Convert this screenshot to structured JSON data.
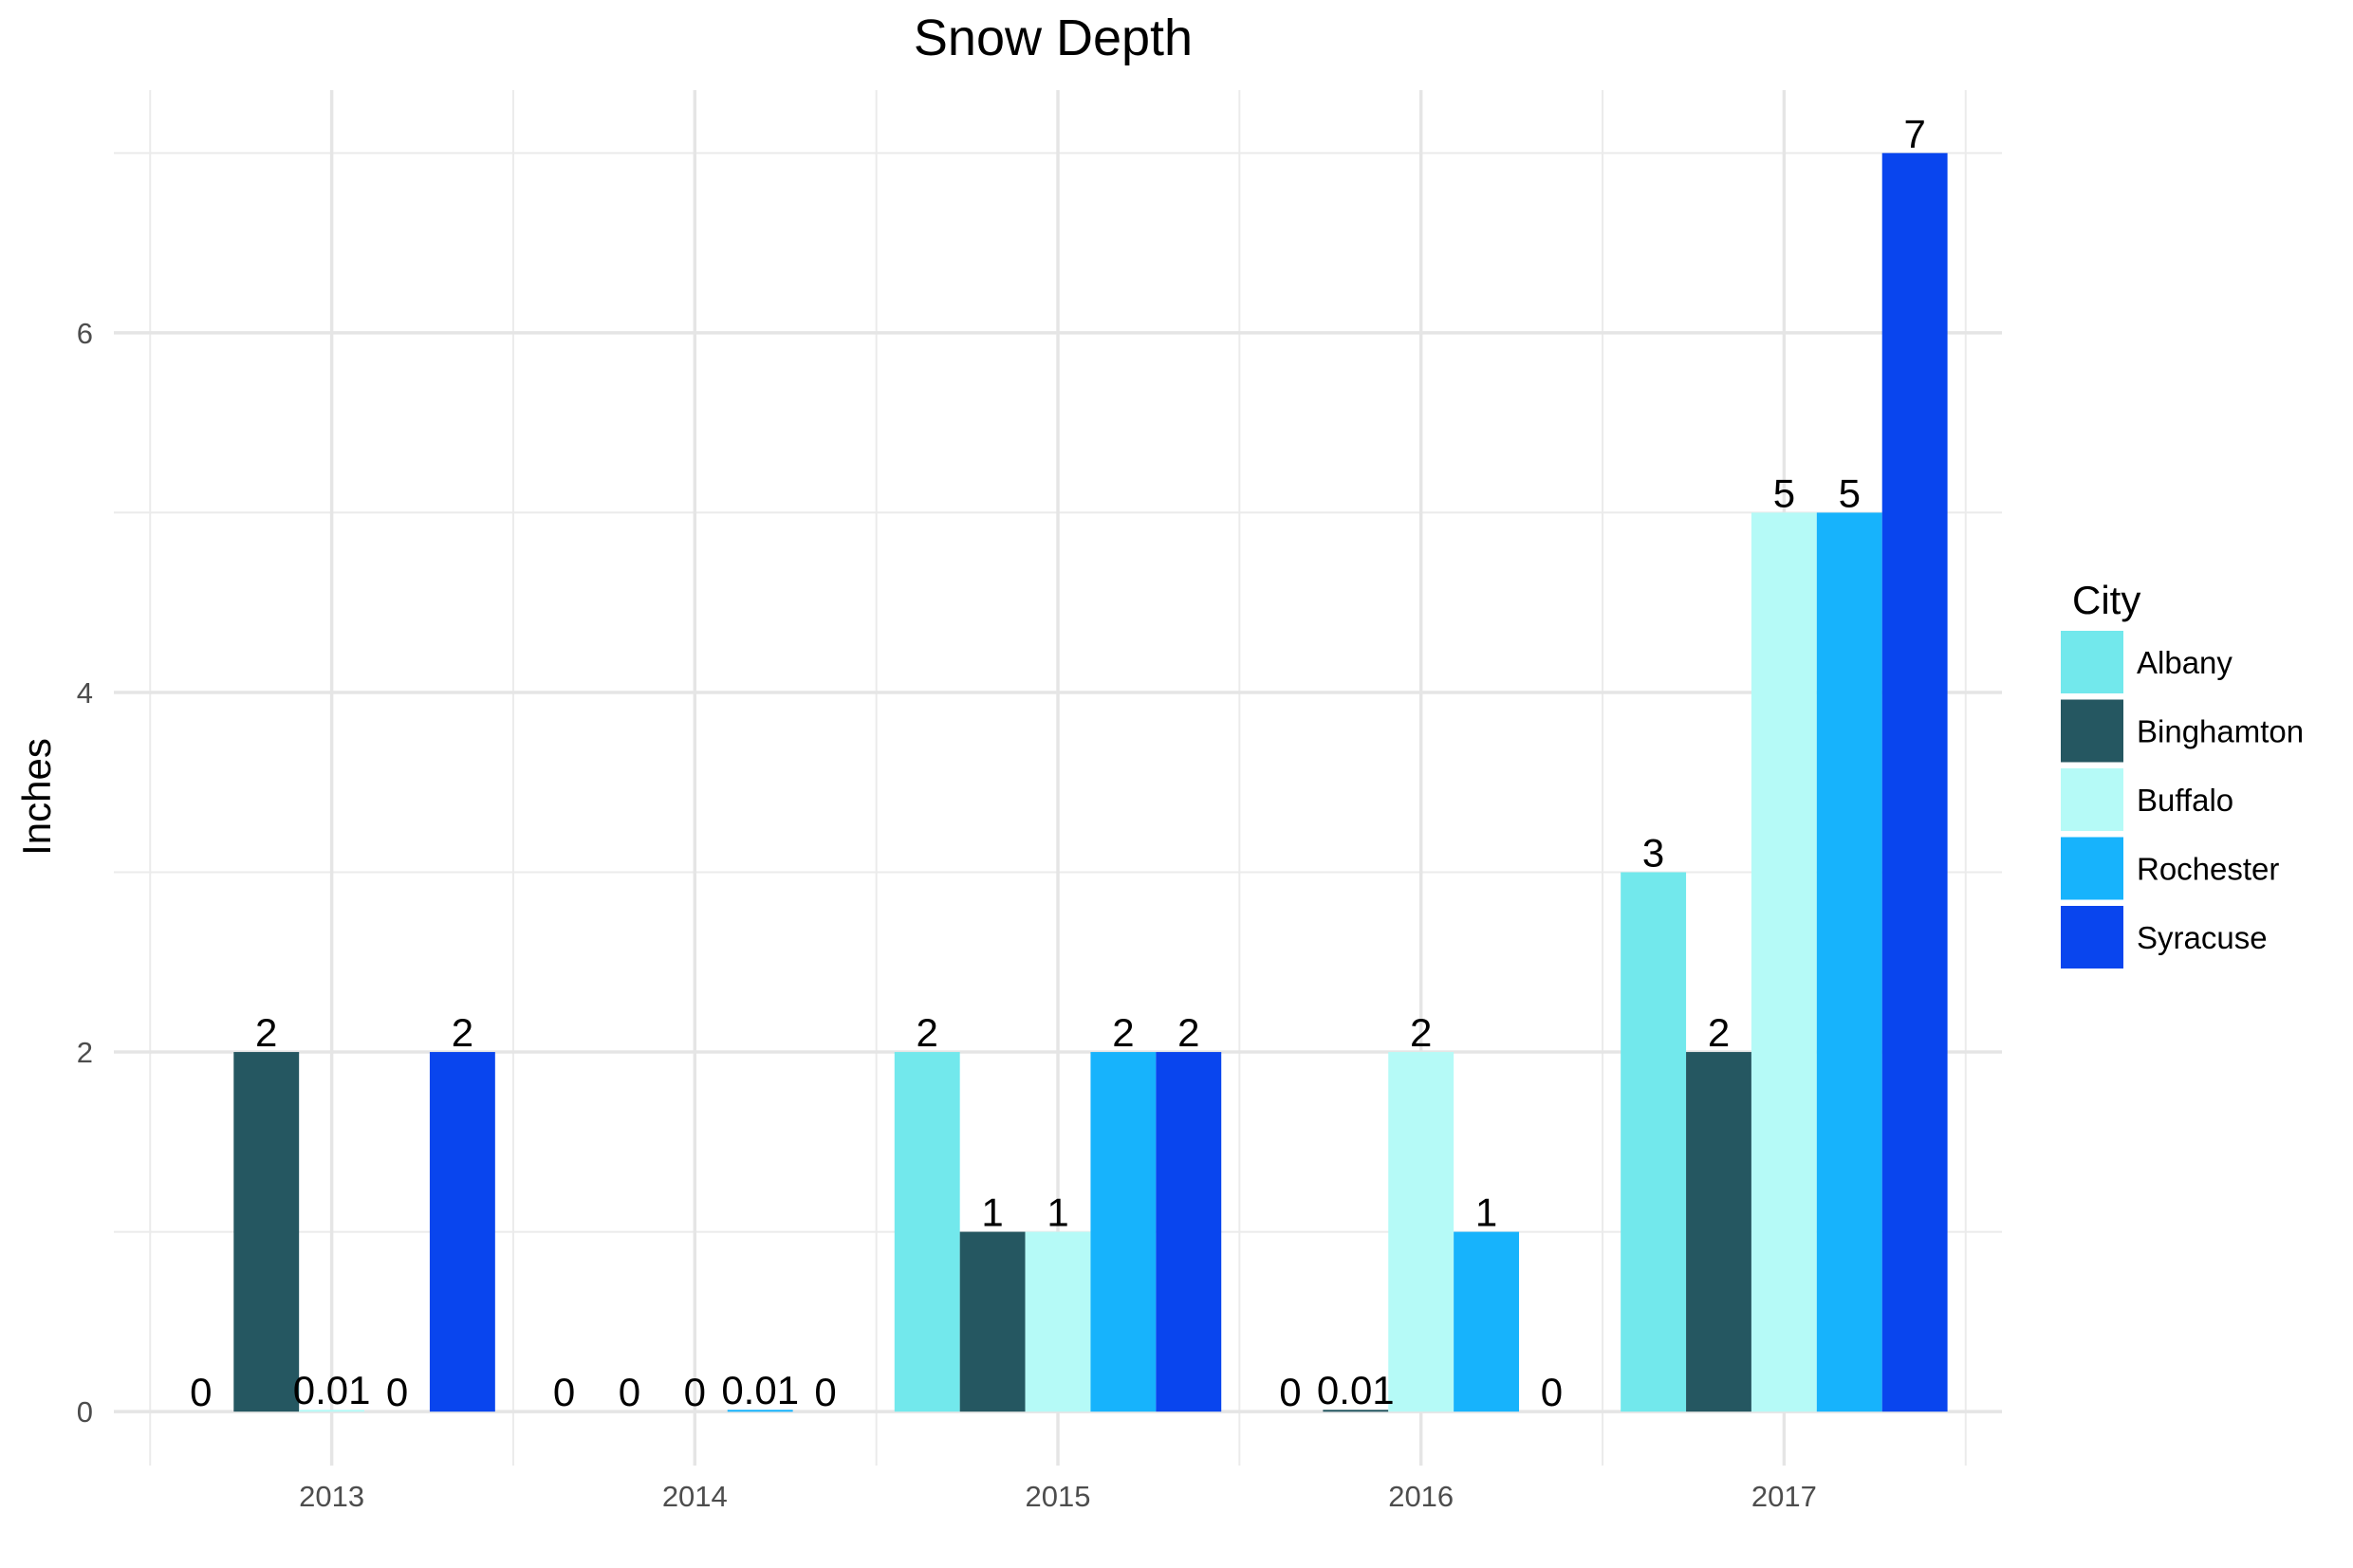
{
  "chart_data": {
    "type": "bar",
    "title": "Snow Depth",
    "xlabel": "",
    "ylabel": "Inches",
    "categories": [
      "2013",
      "2014",
      "2015",
      "2016",
      "2017"
    ],
    "series": [
      {
        "name": "Albany",
        "color": "#72e8ec",
        "values": [
          0,
          0,
          2,
          0,
          3
        ],
        "labels": [
          "0",
          "0",
          "2",
          "0",
          "3"
        ]
      },
      {
        "name": "Binghamton",
        "color": "#255761",
        "values": [
          2,
          0,
          1,
          0.01,
          2
        ],
        "labels": [
          "2",
          "0",
          "1",
          "0.01",
          "2"
        ]
      },
      {
        "name": "Buffalo",
        "color": "#b5faf7",
        "values": [
          0.01,
          0,
          1,
          2,
          5
        ],
        "labels": [
          "0.01",
          "0",
          "1",
          "2",
          "5"
        ]
      },
      {
        "name": "Rochester",
        "color": "#17b3fc",
        "values": [
          0,
          0.01,
          2,
          1,
          5
        ],
        "labels": [
          "0",
          "0.01",
          "2",
          "1",
          "5"
        ]
      },
      {
        "name": "Syracuse",
        "color": "#0945ee",
        "values": [
          2,
          0,
          2,
          0,
          7
        ],
        "labels": [
          "2",
          "0",
          "2",
          "0",
          "7"
        ]
      }
    ],
    "ylim": [
      -0.3,
      7.35
    ],
    "yticks": [
      0,
      2,
      4,
      6
    ],
    "grid": true,
    "legend": {
      "title": "City",
      "position": "right"
    }
  }
}
